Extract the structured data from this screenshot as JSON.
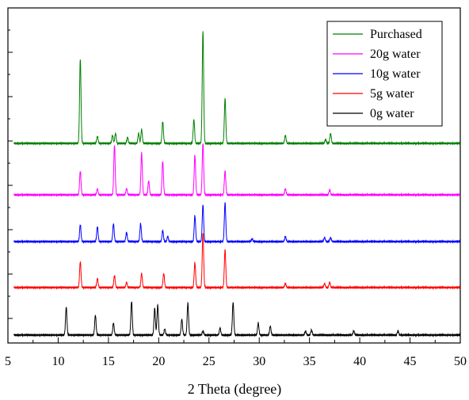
{
  "chart_data": {
    "type": "line",
    "title": "",
    "xlabel": "2 Theta (degree)",
    "ylabel": "",
    "xlim": [
      5,
      50
    ],
    "x_ticks": [
      5,
      10,
      15,
      20,
      25,
      30,
      35,
      40,
      45,
      50
    ],
    "y_tick_labels_shown": false,
    "grid": false,
    "stacked_offset_traces": true,
    "legend": {
      "placement": "top-right",
      "entries": [
        "Purchased",
        "20g water",
        "10g water",
        "5g water",
        "0g water"
      ]
    },
    "series": [
      {
        "name": "Purchased",
        "color": "#008000",
        "baseline": 0.25,
        "peaks": [
          [
            12.2,
            0.85
          ],
          [
            13.9,
            0.07
          ],
          [
            15.4,
            0.08
          ],
          [
            15.7,
            0.1
          ],
          [
            16.9,
            0.06
          ],
          [
            18.0,
            0.1
          ],
          [
            18.3,
            0.14
          ],
          [
            20.4,
            0.22
          ],
          [
            23.5,
            0.24
          ],
          [
            24.4,
            1.13
          ],
          [
            26.6,
            0.45
          ],
          [
            32.6,
            0.08
          ],
          [
            36.6,
            0.04
          ],
          [
            37.1,
            0.1
          ]
        ]
      },
      {
        "name": "20g water",
        "color": "#ff00ff",
        "baseline": 0.25,
        "peaks": [
          [
            12.2,
            0.24
          ],
          [
            13.9,
            0.06
          ],
          [
            15.6,
            0.5
          ],
          [
            16.8,
            0.06
          ],
          [
            18.3,
            0.42
          ],
          [
            19.0,
            0.14
          ],
          [
            20.4,
            0.34
          ],
          [
            23.6,
            0.4
          ],
          [
            24.4,
            0.52
          ],
          [
            26.6,
            0.24
          ],
          [
            32.6,
            0.06
          ],
          [
            37.0,
            0.05
          ]
        ]
      },
      {
        "name": "10g water",
        "color": "#0000ff",
        "baseline": 0.25,
        "peaks": [
          [
            12.2,
            0.17
          ],
          [
            13.9,
            0.15
          ],
          [
            15.5,
            0.18
          ],
          [
            16.8,
            0.09
          ],
          [
            18.2,
            0.18
          ],
          [
            20.4,
            0.11
          ],
          [
            20.9,
            0.05
          ],
          [
            23.6,
            0.26
          ],
          [
            24.4,
            0.37
          ],
          [
            26.6,
            0.39
          ],
          [
            29.3,
            0.03
          ],
          [
            32.6,
            0.05
          ],
          [
            36.5,
            0.04
          ],
          [
            37.1,
            0.04
          ]
        ]
      },
      {
        "name": "5g water",
        "color": "#ff0000",
        "baseline": 0.25,
        "peaks": [
          [
            12.2,
            0.26
          ],
          [
            13.9,
            0.09
          ],
          [
            15.6,
            0.12
          ],
          [
            16.8,
            0.05
          ],
          [
            18.3,
            0.14
          ],
          [
            20.5,
            0.14
          ],
          [
            23.6,
            0.25
          ],
          [
            24.4,
            0.55
          ],
          [
            26.6,
            0.38
          ],
          [
            32.6,
            0.04
          ],
          [
            36.5,
            0.04
          ],
          [
            37.0,
            0.05
          ]
        ]
      },
      {
        "name": "0g water",
        "color": "#000000",
        "baseline": 0.25,
        "peaks": [
          [
            10.8,
            0.28
          ],
          [
            13.7,
            0.2
          ],
          [
            15.5,
            0.12
          ],
          [
            17.3,
            0.34
          ],
          [
            19.6,
            0.27
          ],
          [
            19.9,
            0.3
          ],
          [
            20.6,
            0.06
          ],
          [
            22.3,
            0.16
          ],
          [
            22.9,
            0.32
          ],
          [
            24.4,
            0.04
          ],
          [
            26.1,
            0.07
          ],
          [
            27.4,
            0.33
          ],
          [
            29.9,
            0.12
          ],
          [
            31.1,
            0.09
          ],
          [
            34.6,
            0.04
          ],
          [
            35.2,
            0.05
          ],
          [
            39.4,
            0.04
          ],
          [
            43.8,
            0.04
          ]
        ]
      }
    ]
  }
}
